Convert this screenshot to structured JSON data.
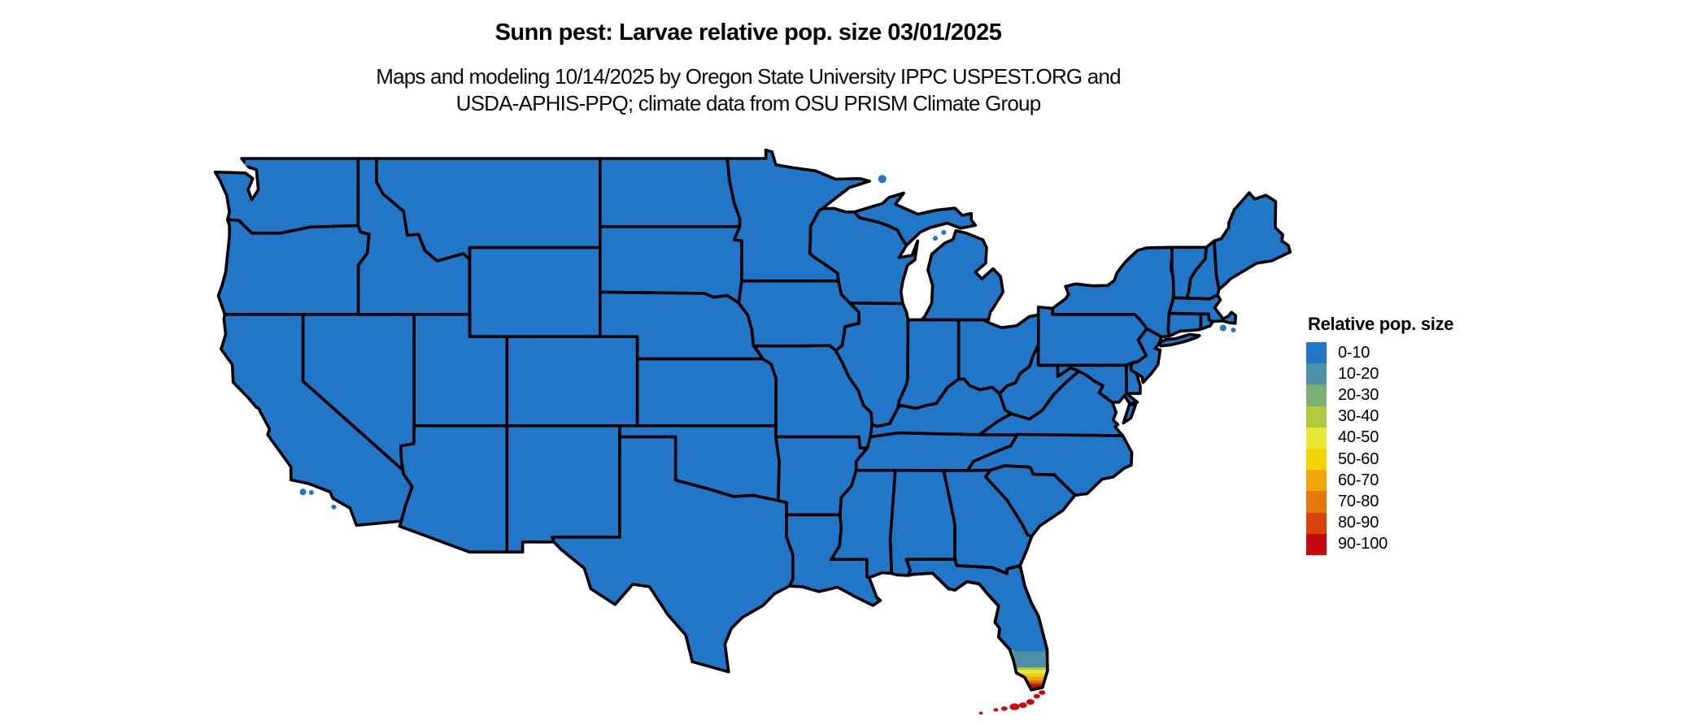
{
  "header": {
    "title": "Sunn pest: Larvae relative pop. size 03/01/2025",
    "subtitle_line1": "Maps and modeling 10/14/2025 by Oregon State University IPPC USPEST.ORG and",
    "subtitle_line2": "USDA-APHIS-PPQ; climate data from OSU PRISM Climate Group"
  },
  "legend": {
    "title": "Relative pop. size",
    "items": [
      {
        "label": "0-10",
        "color": "#2176c8"
      },
      {
        "label": "10-20",
        "color": "#4d8fa5"
      },
      {
        "label": "20-30",
        "color": "#7ab073"
      },
      {
        "label": "30-40",
        "color": "#aeca3e"
      },
      {
        "label": "40-50",
        "color": "#e9e735"
      },
      {
        "label": "50-60",
        "color": "#f6d303"
      },
      {
        "label": "60-70",
        "color": "#f0a50b"
      },
      {
        "label": "70-80",
        "color": "#e4780b"
      },
      {
        "label": "80-90",
        "color": "#d6420b"
      },
      {
        "label": "90-100",
        "color": "#c60a10"
      }
    ]
  },
  "map": {
    "border_color": "#000000",
    "background_color": "#ffffff",
    "base_class_label": "0-10",
    "hotspot": {
      "region": "southern Florida and Florida Keys",
      "classes_present": [
        "10-20",
        "20-30",
        "30-40",
        "40-50",
        "50-60",
        "60-70",
        "70-80",
        "80-90",
        "90-100"
      ]
    }
  }
}
